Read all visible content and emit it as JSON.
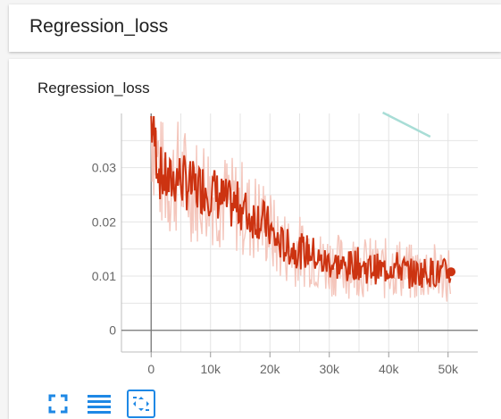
{
  "section": {
    "title": "Regression_loss"
  },
  "card": {
    "title": "Regression_loss"
  },
  "toolbar": {
    "buttons": [
      {
        "icon": "fullscreen-icon"
      },
      {
        "icon": "log-scale-icon"
      },
      {
        "icon": "fit-domain-icon"
      }
    ],
    "accent_color": "#1e88e5"
  },
  "chart_data": {
    "type": "line",
    "title": "",
    "xlabel": "",
    "ylabel": "",
    "xlim": [
      -5000,
      55000
    ],
    "ylim": [
      -0.004,
      0.04
    ],
    "x_ticks": [
      0,
      10000,
      20000,
      30000,
      40000,
      50000
    ],
    "x_tick_labels": [
      "0",
      "10k",
      "20k",
      "30k",
      "40k",
      "50k"
    ],
    "y_ticks": [
      0,
      0.01,
      0.02,
      0.03
    ],
    "y_tick_labels": [
      "0",
      "0.01",
      "0.02",
      "0.03"
    ],
    "grid": true,
    "smoothed_color": "#cc3311",
    "raw_color": "#f4c6bc",
    "ghost_color": "#a8ddd6",
    "series": [
      {
        "x": [
          0,
          1500,
          3000,
          4500,
          6000,
          7500,
          9000,
          10500,
          12000,
          13500,
          15000,
          16500,
          18000,
          19500,
          21000,
          22500,
          24000,
          25500,
          27000,
          28500,
          30000,
          31500,
          33000,
          34500,
          36000,
          37500,
          39000,
          40500,
          42000,
          43500,
          45000,
          46500,
          48000,
          49500,
          50500
        ],
        "y": [
          0.039,
          0.029,
          0.027,
          0.0285,
          0.027,
          0.026,
          0.0265,
          0.0255,
          0.024,
          0.023,
          0.023,
          0.021,
          0.021,
          0.0195,
          0.0165,
          0.0155,
          0.015,
          0.0145,
          0.0145,
          0.0125,
          0.0125,
          0.012,
          0.0115,
          0.0125,
          0.0115,
          0.0115,
          0.011,
          0.012,
          0.0115,
          0.0105,
          0.0105,
          0.011,
          0.0105,
          0.0105,
          0.0108
        ]
      }
    ]
  }
}
